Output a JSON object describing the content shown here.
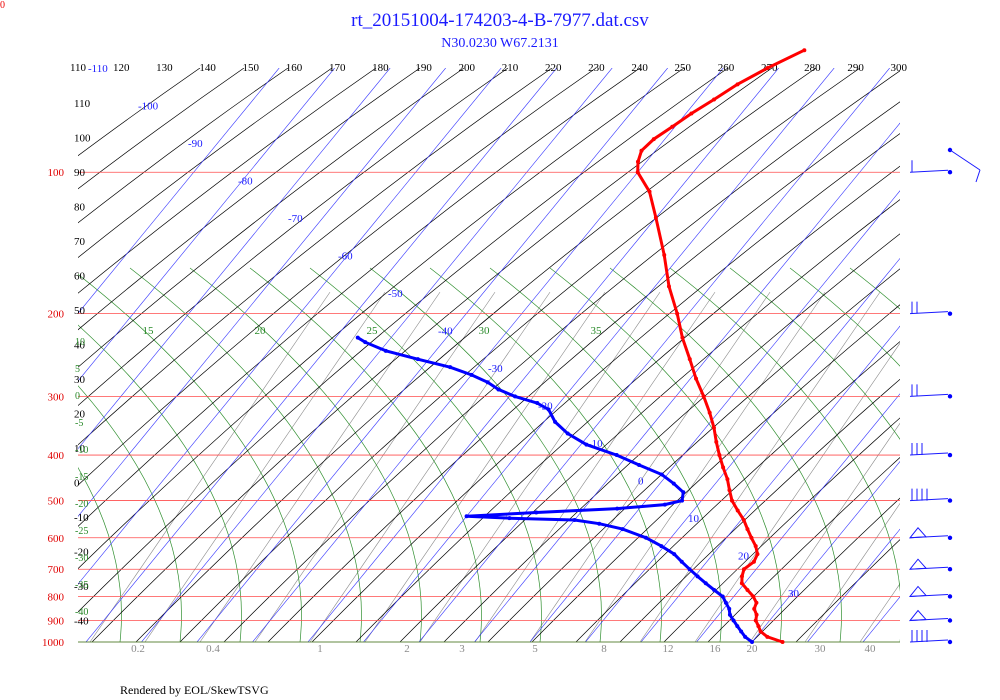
{
  "header": {
    "title": "rt_20151004-174203-4-B-7977.dat.csv",
    "subtitle": "N30.0230 W67.2131",
    "corner_label": "0"
  },
  "footer": {
    "text": "Rendered by EOL/SkewTSVG"
  },
  "chart_data": {
    "type": "skew-t",
    "theta_labels": [
      "110",
      "120",
      "130",
      "140",
      "150",
      "160",
      "170",
      "180",
      "190",
      "200",
      "210",
      "220",
      "230",
      "240",
      "250",
      "260",
      "270",
      "280",
      "290",
      "300"
    ],
    "pressure_levels": [
      1000,
      900,
      800,
      700,
      600,
      500,
      400,
      300,
      200,
      100
    ],
    "temp_labels": [
      {
        "v": "-110",
        "at": "110"
      },
      {
        "v": "-100",
        "at": "100"
      },
      {
        "v": "-90",
        "at": "90"
      },
      {
        "v": "-80",
        "at": "80"
      },
      {
        "v": "-70",
        "at": "70"
      },
      {
        "v": "-60",
        "at": "60"
      },
      {
        "v": "-50",
        "at": "50"
      },
      {
        "v": "-40",
        "at": "40"
      },
      {
        "v": "-30",
        "at": "30"
      },
      {
        "v": "-20",
        "at": "20"
      },
      {
        "v": "-10",
        "at": "10"
      },
      {
        "v": "0",
        "at": "0"
      },
      {
        "v": "10",
        "at": "10b"
      },
      {
        "v": "20",
        "at": "20b"
      },
      {
        "v": "30",
        "at": "30b"
      }
    ],
    "left_temp_labels": [
      "110",
      "100",
      "90",
      "80",
      "70",
      "60",
      "50",
      "40",
      "30",
      "20",
      "10",
      "0",
      "-10",
      "-20",
      "-30",
      "-40"
    ],
    "moist_adiabat_labels": [
      "15",
      "20",
      "25",
      "30",
      "35"
    ],
    "green_left_labels": [
      "10",
      "5",
      "0",
      "-5",
      "-10",
      "-15",
      "-20",
      "-25",
      "-30",
      "-35",
      "-40"
    ],
    "mixing_ratio_labels": [
      "0.2",
      "0.4",
      "1",
      "2",
      "3",
      "5",
      "8",
      "12",
      "16",
      "20",
      "30",
      "40"
    ],
    "series": [
      {
        "name": "temperature",
        "color": "#ff0000",
        "points": [
          [
            1000,
            25.5
          ],
          [
            975,
            22.0
          ],
          [
            950,
            20.0
          ],
          [
            925,
            18.8
          ],
          [
            900,
            17.5
          ],
          [
            875,
            16.8
          ],
          [
            850,
            15.5
          ],
          [
            825,
            15.0
          ],
          [
            800,
            13.5
          ],
          [
            775,
            11.5
          ],
          [
            750,
            9.5
          ],
          [
            725,
            8.5
          ],
          [
            700,
            7.8
          ],
          [
            675,
            8.5
          ],
          [
            650,
            8.0
          ],
          [
            625,
            6.5
          ],
          [
            600,
            4.5
          ],
          [
            575,
            2.5
          ],
          [
            550,
            0.5
          ],
          [
            525,
            -2.0
          ],
          [
            500,
            -4.5
          ],
          [
            475,
            -6.5
          ],
          [
            450,
            -8.5
          ],
          [
            425,
            -11.0
          ],
          [
            400,
            -13.5
          ],
          [
            375,
            -16.0
          ],
          [
            350,
            -18.5
          ],
          [
            325,
            -21.5
          ],
          [
            300,
            -25.0
          ],
          [
            275,
            -29.0
          ],
          [
            250,
            -33.0
          ],
          [
            225,
            -37.5
          ],
          [
            200,
            -42.0
          ],
          [
            175,
            -47.5
          ],
          [
            150,
            -53.0
          ],
          [
            125,
            -60.0
          ],
          [
            110,
            -65.0
          ],
          [
            100,
            -70.0
          ],
          [
            95,
            -71.5
          ],
          [
            90,
            -72.5
          ],
          [
            85,
            -72.0
          ],
          [
            80,
            -70.5
          ],
          [
            75,
            -69.0
          ],
          [
            70,
            -67.0
          ],
          [
            65,
            -65.0
          ],
          [
            60,
            -62.0
          ],
          [
            55,
            -58.0
          ]
        ]
      },
      {
        "name": "dewpoint",
        "color": "#0000ff",
        "points": [
          [
            1000,
            20.0
          ],
          [
            975,
            18.0
          ],
          [
            950,
            16.5
          ],
          [
            925,
            15.0
          ],
          [
            900,
            13.5
          ],
          [
            875,
            12.0
          ],
          [
            850,
            11.0
          ],
          [
            825,
            9.5
          ],
          [
            800,
            8.0
          ],
          [
            775,
            5.5
          ],
          [
            750,
            3.0
          ],
          [
            725,
            0.5
          ],
          [
            700,
            -2.0
          ],
          [
            675,
            -4.5
          ],
          [
            650,
            -7.0
          ],
          [
            625,
            -10.5
          ],
          [
            600,
            -14.5
          ],
          [
            575,
            -20.0
          ],
          [
            560,
            -25.0
          ],
          [
            550,
            -30.0
          ],
          [
            545,
            -42.0
          ],
          [
            540,
            -50.0
          ],
          [
            530,
            -38.0
          ],
          [
            520,
            -24.0
          ],
          [
            510,
            -16.0
          ],
          [
            500,
            -13.5
          ],
          [
            480,
            -14.5
          ],
          [
            460,
            -17.5
          ],
          [
            440,
            -21.0
          ],
          [
            420,
            -26.5
          ],
          [
            400,
            -32.0
          ],
          [
            380,
            -39.0
          ],
          [
            360,
            -44.0
          ],
          [
            340,
            -48.0
          ],
          [
            320,
            -51.0
          ],
          [
            310,
            -54.0
          ],
          [
            300,
            -59.0
          ],
          [
            290,
            -63.0
          ],
          [
            280,
            -66.0
          ],
          [
            270,
            -70.0
          ],
          [
            260,
            -75.0
          ],
          [
            250,
            -82.0
          ],
          [
            240,
            -89.0
          ],
          [
            230,
            -94.0
          ],
          [
            225,
            -96.0
          ]
        ]
      }
    ],
    "wind_barbs": [
      {
        "p": 1000,
        "barb": "IIII"
      },
      {
        "p": 900,
        "barb": "flag"
      },
      {
        "p": 800,
        "barb": "flag"
      },
      {
        "p": 700,
        "barb": "flag"
      },
      {
        "p": 600,
        "barb": "flag"
      },
      {
        "p": 500,
        "barb": "IIII"
      },
      {
        "p": 400,
        "barb": "III"
      },
      {
        "p": 300,
        "barb": "II"
      },
      {
        "p": 200,
        "barb": "II"
      },
      {
        "p": 100,
        "barb": "I"
      }
    ],
    "colors": {
      "isobar": "#ff4d4d",
      "isotherm": "#3333ff",
      "dry_adiabat": "#000000",
      "moist_adiabat": "#2f8f2f",
      "mixing_ratio": "#8a8a8a",
      "label_blue": "#1a1aff",
      "label_green": "#2a8a2a"
    },
    "xlabel": "",
    "ylabel": "",
    "grid": true
  }
}
